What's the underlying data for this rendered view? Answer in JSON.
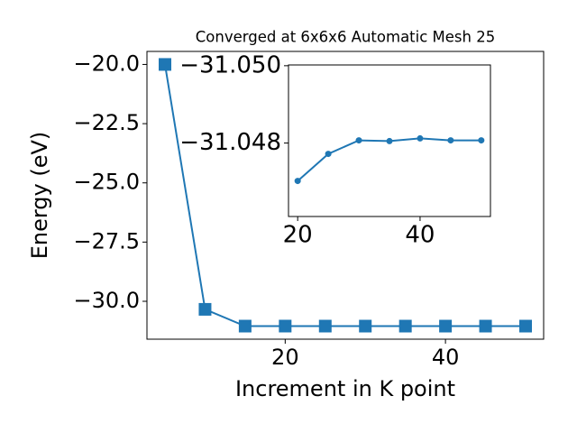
{
  "chart_data": [
    {
      "type": "line",
      "title": "Converged at 6x6x6 Automatic Mesh 25",
      "xlabel": "Increment in K point",
      "ylabel": "Energy (eV)",
      "x": [
        5,
        10,
        15,
        20,
        25,
        30,
        35,
        40,
        45,
        50
      ],
      "series": [
        {
          "name": "Energy",
          "color": "#1f77b4",
          "marker": "square",
          "values": [
            -20.0,
            -30.34,
            -31.048,
            -31.047,
            -31.0477,
            -31.0481,
            -31.048,
            -31.0481,
            -31.0481,
            -31.0481
          ]
        }
      ],
      "xlim": [
        2.75,
        52.25
      ],
      "ylim": [
        -31.6,
        -19.45
      ],
      "xticks": [
        20,
        40
      ],
      "yticks": [
        {
          "value": -20,
          "label": "−20.0"
        },
        {
          "value": -22.5,
          "label": "−22.5"
        },
        {
          "value": -25,
          "label": "−25.0"
        },
        {
          "value": -27.5,
          "label": "−27.5"
        },
        {
          "value": -30,
          "label": "−30.0"
        }
      ]
    },
    {
      "type": "line",
      "x": [
        20,
        25,
        30,
        35,
        40,
        45,
        50
      ],
      "series": [
        {
          "name": "Energy",
          "color": "#1f77b4",
          "marker": "circle",
          "values": [
            -31.04702,
            -31.04772,
            -31.04807,
            -31.04805,
            -31.04812,
            -31.04807,
            -31.04807
          ]
        }
      ],
      "xlim": [
        18.5,
        51.5
      ],
      "ylim": [
        -31.0461,
        -31.05002
      ],
      "xticks": [
        20,
        40
      ],
      "yticks": [
        {
          "value": -31.05,
          "label": "−31.050"
        },
        {
          "value": -31.048,
          "label": "−31.048"
        }
      ]
    }
  ]
}
